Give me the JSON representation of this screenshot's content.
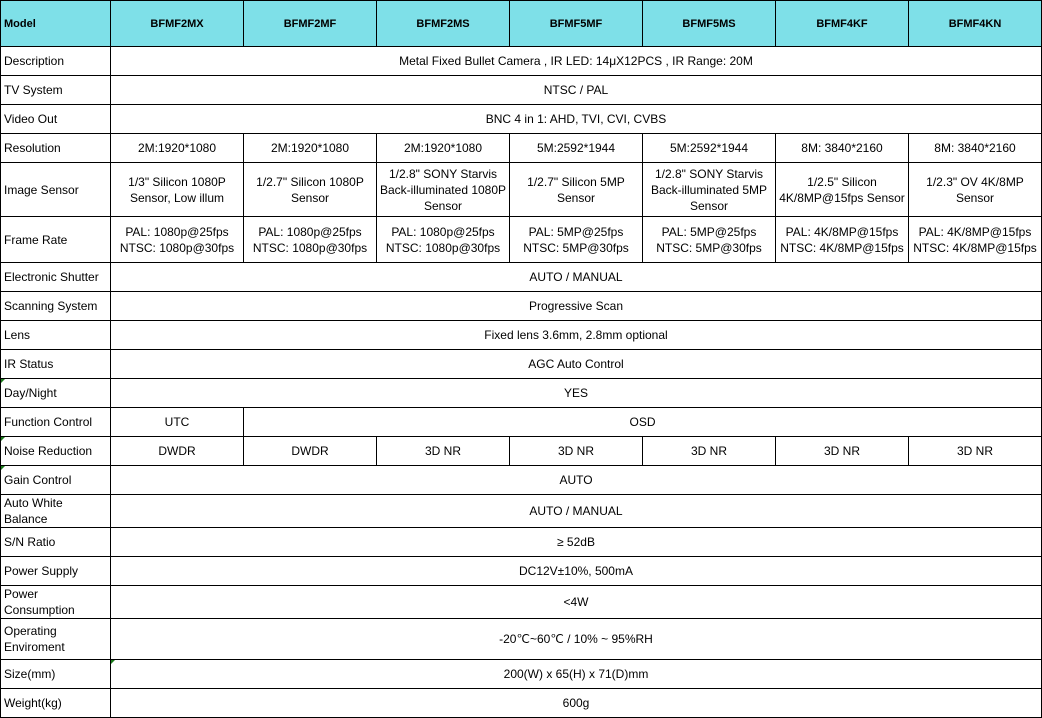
{
  "header": {
    "label": "Model",
    "models": [
      "BFMF2MX",
      "BFMF2MF",
      "BFMF2MS",
      "BFMF5MF",
      "BFMF5MS",
      "BFMF4KF",
      "BFMF4KN"
    ]
  },
  "header_color": "#7ee0e8",
  "rows": [
    {
      "label": "Description",
      "cells": [
        {
          "text": "Metal Fixed Bullet Camera , IR LED: 14μX12PCS , IR Range: 20M",
          "span": 7
        }
      ]
    },
    {
      "label": "TV System",
      "cells": [
        {
          "text": "NTSC / PAL",
          "span": 7
        }
      ]
    },
    {
      "label": "Video Out",
      "cells": [
        {
          "text": "BNC 4 in 1: AHD, TVI, CVI, CVBS",
          "span": 7
        }
      ]
    },
    {
      "label": "Resolution",
      "cells": [
        {
          "text": "2M:1920*1080"
        },
        {
          "text": "2M:1920*1080"
        },
        {
          "text": "2M:1920*1080"
        },
        {
          "text": "5M:2592*1944"
        },
        {
          "text": "5M:2592*1944"
        },
        {
          "text": "8M: 3840*2160"
        },
        {
          "text": "8M: 3840*2160"
        }
      ]
    },
    {
      "label": "Image Sensor",
      "cells": [
        {
          "text": "1/3\" Silicon 1080P Sensor, Low illum"
        },
        {
          "text": "1/2.7\" Silicon 1080P Sensor"
        },
        {
          "text": "1/2.8\" SONY Starvis Back-illuminated 1080P Sensor"
        },
        {
          "text": "1/2.7\" Silicon 5MP Sensor"
        },
        {
          "text": "1/2.8\" SONY Starvis Back-illuminated 5MP Sensor"
        },
        {
          "text": "1/2.5\" Silicon 4K/8MP@15fps Sensor"
        },
        {
          "text": "1/2.3\" OV 4K/8MP Sensor"
        }
      ]
    },
    {
      "label": "Frame Rate",
      "cells": [
        {
          "text": "PAL: 1080p@25fps\nNTSC: 1080p@30fps"
        },
        {
          "text": "PAL: 1080p@25fps\nNTSC: 1080p@30fps"
        },
        {
          "text": "PAL: 1080p@25fps\nNTSC: 1080p@30fps"
        },
        {
          "text": "PAL: 5MP@25fps\nNTSC: 5MP@30fps"
        },
        {
          "text": "PAL: 5MP@25fps\nNTSC: 5MP@30fps"
        },
        {
          "text": "PAL: 4K/8MP@15fps\nNTSC: 4K/8MP@15fps"
        },
        {
          "text": "PAL: 4K/8MP@15fps\nNTSC: 4K/8MP@15fps"
        }
      ]
    },
    {
      "label": "Electronic Shutter",
      "cells": [
        {
          "text": "AUTO / MANUAL",
          "span": 7
        }
      ]
    },
    {
      "label": "Scanning System",
      "cells": [
        {
          "text": "Progressive  Scan",
          "span": 7
        }
      ]
    },
    {
      "label": "Lens",
      "cells": [
        {
          "text": "Fixed lens 3.6mm, 2.8mm optional",
          "span": 7
        }
      ]
    },
    {
      "label": "IR Status",
      "cells": [
        {
          "text": "AGC Auto Control",
          "span": 7
        }
      ]
    },
    {
      "label": "Day/Night",
      "cells": [
        {
          "text": "YES",
          "span": 7
        }
      ]
    },
    {
      "label": "Function Control",
      "cells": [
        {
          "text": "UTC"
        },
        {
          "text": "OSD",
          "span": 6
        }
      ]
    },
    {
      "label": "Noise Reduction",
      "cells": [
        {
          "text": "DWDR"
        },
        {
          "text": "DWDR"
        },
        {
          "text": "3D NR"
        },
        {
          "text": "3D NR"
        },
        {
          "text": "3D NR"
        },
        {
          "text": "3D NR"
        },
        {
          "text": "3D NR"
        }
      ]
    },
    {
      "label": "Gain Control",
      "cells": [
        {
          "text": "AUTO",
          "span": 7
        }
      ]
    },
    {
      "label": "Auto White Balance",
      "cells": [
        {
          "text": "AUTO / MANUAL",
          "span": 7
        }
      ]
    },
    {
      "label": "S/N Ratio",
      "cells": [
        {
          "text": "≥ 52dB",
          "span": 7
        }
      ]
    },
    {
      "label": "Power Supply",
      "cells": [
        {
          "text": "DC12V±10%, 500mA",
          "span": 7
        }
      ]
    },
    {
      "label": "Power Consumption",
      "cells": [
        {
          "text": "<4W",
          "span": 7
        }
      ]
    },
    {
      "label": "Operating Enviroment",
      "cells": [
        {
          "text": "-20℃~60℃ / 10% ~ 95%RH",
          "span": 7
        }
      ]
    },
    {
      "label": "Size(mm)",
      "cells": [
        {
          "text": "200(W) x 65(H) x 71(D)mm",
          "span": 7
        }
      ]
    },
    {
      "label": "Weight(kg)",
      "cells": [
        {
          "text": "600g",
          "span": 7
        }
      ]
    }
  ]
}
